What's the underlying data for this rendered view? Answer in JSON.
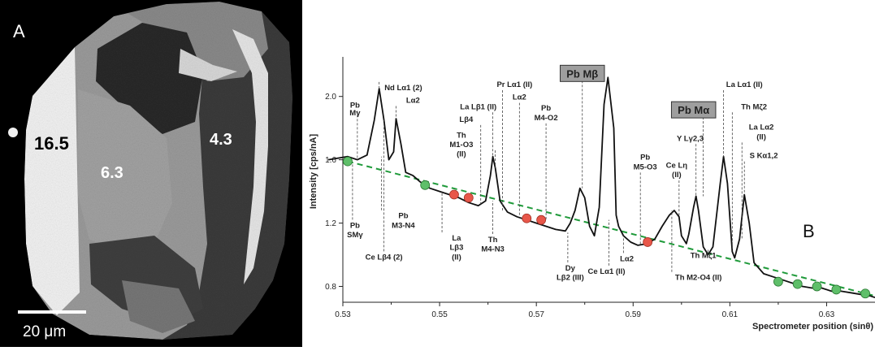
{
  "panel_a": {
    "label": "A",
    "zone_values": [
      "16.5",
      "6.3",
      "4.3"
    ],
    "scale_bar": "20 μm"
  },
  "panel_b": {
    "label": "B"
  },
  "chart_data": {
    "type": "line",
    "xlabel": "Spectrometer position (sinθ)",
    "ylabel": "Intensity [cps/nA]",
    "xlim": [
      0.53,
      0.64
    ],
    "ylim": [
      0.7,
      2.25
    ],
    "xticks": [
      "0.53",
      "0.55",
      "0.57",
      "0.59",
      "0.61",
      "0.63"
    ],
    "yticks": [
      "0.8",
      "1.2",
      "1.6",
      "2.0"
    ],
    "series": [
      {
        "values": [
          [
            0.527,
            1.6
          ],
          [
            0.531,
            1.62
          ],
          [
            0.533,
            1.6
          ],
          [
            0.535,
            1.63
          ],
          [
            0.5365,
            1.85
          ],
          [
            0.5375,
            2.05
          ],
          [
            0.5385,
            1.85
          ],
          [
            0.5395,
            1.6
          ],
          [
            0.5405,
            1.65
          ],
          [
            0.541,
            1.86
          ],
          [
            0.542,
            1.7
          ],
          [
            0.543,
            1.52
          ],
          [
            0.5445,
            1.5
          ],
          [
            0.546,
            1.46
          ],
          [
            0.548,
            1.42
          ],
          [
            0.55,
            1.4
          ],
          [
            0.552,
            1.38
          ],
          [
            0.554,
            1.36
          ],
          [
            0.556,
            1.33
          ],
          [
            0.558,
            1.31
          ],
          [
            0.5595,
            1.34
          ],
          [
            0.5605,
            1.5
          ],
          [
            0.561,
            1.62
          ],
          [
            0.5615,
            1.55
          ],
          [
            0.5625,
            1.34
          ],
          [
            0.564,
            1.27
          ],
          [
            0.566,
            1.24
          ],
          [
            0.568,
            1.22
          ],
          [
            0.57,
            1.2
          ],
          [
            0.572,
            1.18
          ],
          [
            0.574,
            1.16
          ],
          [
            0.576,
            1.15
          ],
          [
            0.577,
            1.2
          ],
          [
            0.578,
            1.28
          ],
          [
            0.579,
            1.42
          ],
          [
            0.58,
            1.36
          ],
          [
            0.581,
            1.18
          ],
          [
            0.582,
            1.12
          ],
          [
            0.583,
            1.3
          ],
          [
            0.584,
            1.95
          ],
          [
            0.5848,
            2.12
          ],
          [
            0.586,
            1.8
          ],
          [
            0.5865,
            1.25
          ],
          [
            0.587,
            1.18
          ],
          [
            0.588,
            1.12
          ],
          [
            0.5895,
            1.08
          ],
          [
            0.591,
            1.06
          ],
          [
            0.593,
            1.07
          ],
          [
            0.5945,
            1.1
          ],
          [
            0.596,
            1.18
          ],
          [
            0.5975,
            1.25
          ],
          [
            0.5985,
            1.28
          ],
          [
            0.5995,
            1.24
          ],
          [
            0.6,
            1.12
          ],
          [
            0.601,
            1.07
          ],
          [
            0.6015,
            1.13
          ],
          [
            0.6025,
            1.3
          ],
          [
            0.603,
            1.37
          ],
          [
            0.6035,
            1.28
          ],
          [
            0.6045,
            1.05
          ],
          [
            0.6055,
            1.0
          ],
          [
            0.6065,
            1.05
          ],
          [
            0.608,
            1.45
          ],
          [
            0.6087,
            1.62
          ],
          [
            0.6095,
            1.45
          ],
          [
            0.6105,
            1.02
          ],
          [
            0.611,
            0.98
          ],
          [
            0.612,
            1.1
          ],
          [
            0.613,
            1.38
          ],
          [
            0.614,
            1.2
          ],
          [
            0.615,
            0.95
          ],
          [
            0.617,
            0.88
          ],
          [
            0.619,
            0.86
          ],
          [
            0.621,
            0.84
          ],
          [
            0.623,
            0.82
          ],
          [
            0.625,
            0.8
          ],
          [
            0.627,
            0.79
          ],
          [
            0.629,
            0.79
          ],
          [
            0.631,
            0.77
          ],
          [
            0.633,
            0.77
          ],
          [
            0.635,
            0.76
          ],
          [
            0.637,
            0.75
          ],
          [
            0.639,
            0.74
          ],
          [
            0.64,
            0.73
          ]
        ]
      }
    ],
    "baseline": {
      "from": [
        0.531,
        1.59
      ],
      "to": [
        0.64,
        0.74
      ]
    },
    "markers_green": [
      [
        0.531,
        1.59
      ],
      [
        0.547,
        1.44
      ],
      [
        0.62,
        0.83
      ],
      [
        0.624,
        0.815
      ],
      [
        0.628,
        0.8
      ],
      [
        0.632,
        0.78
      ],
      [
        0.638,
        0.755
      ]
    ],
    "markers_red": [
      [
        0.553,
        1.38
      ],
      [
        0.556,
        1.36
      ],
      [
        0.568,
        1.23
      ],
      [
        0.571,
        1.22
      ],
      [
        0.593,
        1.08
      ]
    ],
    "annotations": [
      {
        "text": "Pb",
        "x": 0.5325,
        "y": 1.93,
        "line_to": [
          0.533,
          1.6
        ],
        "boxed": false
      },
      {
        "text": "Mγ",
        "x": 0.5325,
        "y": 1.88,
        "line_to": null,
        "boxed": false
      },
      {
        "text": "Nd Lα1 (2)",
        "x": 0.5425,
        "y": 2.04,
        "line_to": [
          0.5375,
          2.05
        ],
        "boxed": false
      },
      {
        "text": "Lα2",
        "x": 0.5445,
        "y": 1.96,
        "line_to": [
          0.541,
          1.86
        ],
        "boxed": false
      },
      {
        "text": "La Lβ1 (II)",
        "x": 0.558,
        "y": 1.92,
        "line_to": [
          0.561,
          1.62
        ],
        "boxed": false
      },
      {
        "text": "Lβ4",
        "x": 0.5555,
        "y": 1.84,
        "line_to": [
          0.5585,
          1.32
        ],
        "boxed": false
      },
      {
        "text": "Pr Lα1 (II)",
        "x": 0.5655,
        "y": 2.06,
        "line_to": [
          0.563,
          1.28
        ],
        "boxed": false
      },
      {
        "text": "Lα2",
        "x": 0.5665,
        "y": 1.98,
        "line_to": [
          0.5665,
          1.24
        ],
        "boxed": false
      },
      {
        "text": "Th",
        "x": 0.5545,
        "y": 1.74,
        "line_to": null,
        "boxed": false
      },
      {
        "text": "M1-O3",
        "x": 0.5545,
        "y": 1.68,
        "line_to": [
          0.5615,
          1.55
        ],
        "boxed": false
      },
      {
        "text": "(II)",
        "x": 0.5545,
        "y": 1.62,
        "line_to": null,
        "boxed": false
      },
      {
        "text": "Pb",
        "x": 0.572,
        "y": 1.91,
        "line_to": null,
        "boxed": false
      },
      {
        "text": "M4-O2",
        "x": 0.572,
        "y": 1.85,
        "line_to": [
          0.572,
          1.22
        ],
        "boxed": false
      },
      {
        "text": "Pb Mβ",
        "x": 0.5795,
        "y": 2.12,
        "line_to": [
          0.5795,
          1.42
        ],
        "boxed": true
      },
      {
        "text": "Pb Mα",
        "x": 0.6025,
        "y": 1.89,
        "line_to": [
          0.6045,
          1.37
        ],
        "boxed": true
      },
      {
        "text": "La Lα1 (II)",
        "x": 0.613,
        "y": 2.06,
        "line_to": [
          0.6087,
          1.62
        ],
        "boxed": false
      },
      {
        "text": "Th Mζ2",
        "x": 0.615,
        "y": 1.92,
        "line_to": [
          0.6105,
          1.03
        ],
        "boxed": false
      },
      {
        "text": "La Lα2",
        "x": 0.6165,
        "y": 1.79,
        "line_to": null,
        "boxed": false
      },
      {
        "text": "(II)",
        "x": 0.6165,
        "y": 1.73,
        "line_to": [
          0.6125,
          1.1
        ],
        "boxed": false
      },
      {
        "text": "S Kα1,2",
        "x": 0.617,
        "y": 1.61,
        "line_to": [
          0.613,
          1.38
        ],
        "boxed": false
      },
      {
        "text": "Y Lγ2,3",
        "x": 0.6018,
        "y": 1.72,
        "line_to": [
          0.603,
          1.37
        ],
        "boxed": false
      },
      {
        "text": "Ce Lη",
        "x": 0.599,
        "y": 1.55,
        "line_to": null,
        "boxed": false
      },
      {
        "text": "(II)",
        "x": 0.599,
        "y": 1.49,
        "line_to": [
          0.5995,
          1.24
        ],
        "boxed": false
      },
      {
        "text": "Pb",
        "x": 0.5925,
        "y": 1.6,
        "line_to": null,
        "boxed": false
      },
      {
        "text": "M5-O3",
        "x": 0.5925,
        "y": 1.54,
        "line_to": [
          0.5915,
          1.06
        ],
        "boxed": false
      },
      {
        "text": "Pb",
        "x": 0.5325,
        "y": 1.17,
        "line_to": [
          0.532,
          1.58
        ],
        "boxed": false
      },
      {
        "text": "SMγ",
        "x": 0.5325,
        "y": 1.11,
        "line_to": null,
        "boxed": false
      },
      {
        "text": "Pb",
        "x": 0.5425,
        "y": 1.23,
        "line_to": [
          0.538,
          1.62
        ],
        "boxed": false
      },
      {
        "text": "M3-N4",
        "x": 0.5425,
        "y": 1.17,
        "line_to": null,
        "boxed": false
      },
      {
        "text": "Ce Lβ4 (2)",
        "x": 0.5385,
        "y": 0.97,
        "line_to": [
          0.5385,
          1.85
        ],
        "boxed": false
      },
      {
        "text": "La",
        "x": 0.5535,
        "y": 1.09,
        "line_to": [
          0.5505,
          1.4
        ],
        "boxed": false
      },
      {
        "text": "Lβ3",
        "x": 0.5535,
        "y": 1.03,
        "line_to": null,
        "boxed": false
      },
      {
        "text": "(II)",
        "x": 0.5535,
        "y": 0.97,
        "line_to": null,
        "boxed": false
      },
      {
        "text": "Th",
        "x": 0.561,
        "y": 1.08,
        "line_to": [
          0.561,
          1.34
        ],
        "boxed": false
      },
      {
        "text": "M4-N3",
        "x": 0.561,
        "y": 1.02,
        "line_to": null,
        "boxed": false
      },
      {
        "text": "Dy",
        "x": 0.577,
        "y": 0.9,
        "line_to": [
          0.5765,
          1.14
        ],
        "boxed": false
      },
      {
        "text": "Lβ2 (III)",
        "x": 0.577,
        "y": 0.84,
        "line_to": null,
        "boxed": false
      },
      {
        "text": "Ce Lα1 (II)",
        "x": 0.5845,
        "y": 0.88,
        "line_to": [
          0.585,
          1.22
        ],
        "boxed": false
      },
      {
        "text": "Lα2",
        "x": 0.5887,
        "y": 0.96,
        "line_to": [
          0.588,
          1.12
        ],
        "boxed": false
      },
      {
        "text": "Th Mζ1",
        "x": 0.6045,
        "y": 0.98,
        "line_to": [
          0.6055,
          1.0
        ],
        "boxed": false
      },
      {
        "text": "Th M2-O4 (II)",
        "x": 0.6035,
        "y": 0.84,
        "line_to": [
          0.598,
          1.28
        ],
        "boxed": false
      }
    ],
    "colors": {
      "line": "#111111",
      "baseline": "#1f9a3a",
      "green": "#5fbf6a",
      "red": "#e8574a"
    }
  }
}
